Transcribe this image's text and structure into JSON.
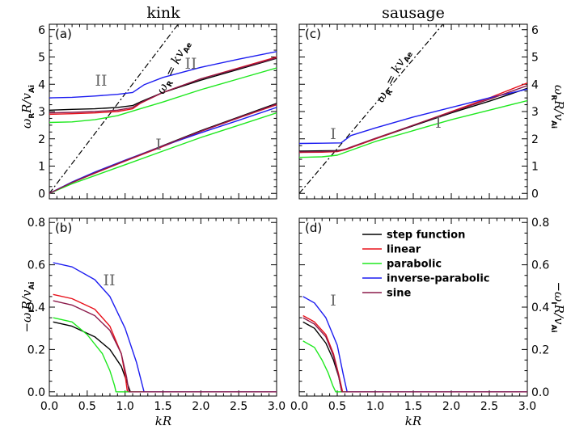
{
  "titles": {
    "left": "kink",
    "right": "sausage"
  },
  "xlabel": "kR",
  "ylabel_top": {
    "pre": "ω",
    "sub": "R",
    "post": "R/v",
    "sub2": "Ai"
  },
  "ylabel_bottom": {
    "pre": "−ω",
    "sub": "I",
    "post": "R/v",
    "sub2": "Ai"
  },
  "diag_label": {
    "pre": "ω",
    "sub": "R",
    "post": " = kv",
    "sub2": "Ae"
  },
  "x_ticks": [
    "0.0",
    "0.5",
    "1.0",
    "1.5",
    "2.0",
    "2.5",
    "3.0"
  ],
  "top_y_ticks": [
    "0",
    "1",
    "2",
    "3",
    "4",
    "5",
    "6"
  ],
  "bottom_y_ticks": [
    "0.0",
    "0.2",
    "0.4",
    "0.6",
    "0.8"
  ],
  "panel_labels": [
    "(a)",
    "(b)",
    "(c)",
    "(d)"
  ],
  "mode_labels": {
    "a_II": "II",
    "a_I": "I",
    "b_II": "II",
    "c_I": "I",
    "c_I2": "I",
    "d_I": "I"
  },
  "legend": [
    {
      "name": "step function",
      "color": "#000000"
    },
    {
      "name": "linear",
      "color": "#e8101a"
    },
    {
      "name": "parabolic",
      "color": "#1ee81e"
    },
    {
      "name": "inverse-parabolic",
      "color": "#1c1cf0"
    },
    {
      "name": "sine",
      "color": "#8b1a4a"
    }
  ],
  "chart_data": [
    {
      "panel": "(a)",
      "type": "line",
      "title": "kink",
      "xlabel": "kR",
      "ylabel": "ωR R/vAi",
      "xlim": [
        0,
        3
      ],
      "ylim": [
        -0.2,
        6.2
      ],
      "reference_line": {
        "label": "ωR = kvAe",
        "x": [
          0,
          1.7
        ],
        "y": [
          0,
          6.2
        ]
      },
      "series": [
        {
          "name": "step function",
          "color": "#000000",
          "x": [
            0,
            0.3,
            0.6,
            0.9,
            1.1,
            1.2,
            1.5,
            2.0,
            2.5,
            3.0
          ],
          "y": [
            3.05,
            3.08,
            3.1,
            3.15,
            3.22,
            3.35,
            3.7,
            4.15,
            4.55,
            4.95
          ]
        },
        {
          "name": "linear",
          "color": "#e8101a",
          "x": [
            0,
            0.3,
            0.6,
            0.9,
            1.1,
            1.2,
            1.5,
            2.0,
            2.5,
            3.0
          ],
          "y": [
            2.9,
            2.92,
            2.95,
            3.0,
            3.1,
            3.3,
            3.7,
            4.2,
            4.6,
            5.0
          ]
        },
        {
          "name": "parabolic",
          "color": "#1ee81e",
          "x": [
            0,
            0.3,
            0.6,
            0.9,
            1.2,
            1.5,
            2.0,
            2.5,
            3.0
          ],
          "y": [
            2.6,
            2.62,
            2.7,
            2.85,
            3.1,
            3.35,
            3.8,
            4.2,
            4.6
          ]
        },
        {
          "name": "inverse-parabolic",
          "color": "#1c1cf0",
          "x": [
            0,
            0.3,
            0.6,
            0.9,
            1.1,
            1.25,
            1.5,
            2.0,
            2.5,
            3.0
          ],
          "y": [
            3.5,
            3.52,
            3.57,
            3.63,
            3.7,
            3.98,
            4.25,
            4.62,
            4.92,
            5.2
          ]
        },
        {
          "name": "sine",
          "color": "#8b1a4a",
          "x": [
            0,
            0.3,
            0.6,
            0.9,
            1.1,
            1.2,
            1.5,
            2.0,
            2.5,
            3.0
          ],
          "y": [
            2.95,
            2.97,
            3.0,
            3.05,
            3.15,
            3.32,
            3.7,
            4.2,
            4.58,
            4.97
          ]
        },
        {
          "name": "step function",
          "color": "#000000",
          "x": [
            0,
            0.3,
            0.6,
            1.0,
            1.5,
            2.0,
            2.5,
            3.0
          ],
          "y": [
            0.0,
            0.4,
            0.75,
            1.2,
            1.75,
            2.3,
            2.8,
            3.3
          ]
        },
        {
          "name": "linear",
          "color": "#e8101a",
          "x": [
            0,
            0.3,
            0.6,
            1.0,
            1.5,
            2.0,
            2.5,
            3.0
          ],
          "y": [
            0.0,
            0.4,
            0.74,
            1.18,
            1.72,
            2.27,
            2.77,
            3.25
          ]
        },
        {
          "name": "parabolic",
          "color": "#1ee81e",
          "x": [
            0,
            0.3,
            0.6,
            1.0,
            1.5,
            2.0,
            2.5,
            3.0
          ],
          "y": [
            0.0,
            0.35,
            0.65,
            1.05,
            1.55,
            2.05,
            2.5,
            2.95
          ]
        },
        {
          "name": "inverse-parabolic",
          "color": "#1c1cf0",
          "x": [
            0,
            0.3,
            0.6,
            1.0,
            1.5,
            2.0,
            2.5,
            3.0
          ],
          "y": [
            0.0,
            0.42,
            0.78,
            1.22,
            1.74,
            2.22,
            2.68,
            3.15
          ]
        },
        {
          "name": "sine",
          "color": "#8b1a4a",
          "x": [
            0,
            0.3,
            0.6,
            1.0,
            1.5,
            2.0,
            2.5,
            3.0
          ],
          "y": [
            0.0,
            0.4,
            0.75,
            1.2,
            1.74,
            2.28,
            2.78,
            3.27
          ]
        }
      ]
    },
    {
      "panel": "(b)",
      "type": "line",
      "xlabel": "kR",
      "ylabel": "−ωI R/vAi",
      "xlim": [
        0,
        3
      ],
      "ylim": [
        -0.02,
        0.82
      ],
      "series": [
        {
          "name": "step function",
          "color": "#000000",
          "x": [
            0.05,
            0.3,
            0.6,
            0.8,
            0.95,
            1.02,
            1.07,
            3.0
          ],
          "y": [
            0.33,
            0.31,
            0.26,
            0.2,
            0.12,
            0.05,
            0.0,
            0.0
          ]
        },
        {
          "name": "linear",
          "color": "#e8101a",
          "x": [
            0.05,
            0.3,
            0.6,
            0.8,
            0.95,
            1.0,
            1.03,
            3.0
          ],
          "y": [
            0.46,
            0.44,
            0.39,
            0.31,
            0.18,
            0.08,
            0.0,
            0.0
          ]
        },
        {
          "name": "parabolic",
          "color": "#1ee81e",
          "x": [
            0.05,
            0.3,
            0.5,
            0.7,
            0.8,
            0.86,
            0.88,
            3.0
          ],
          "y": [
            0.35,
            0.33,
            0.27,
            0.18,
            0.1,
            0.03,
            0.0,
            0.0
          ]
        },
        {
          "name": "inverse-parabolic",
          "color": "#1c1cf0",
          "x": [
            0.05,
            0.3,
            0.6,
            0.8,
            1.0,
            1.15,
            1.25,
            3.0
          ],
          "y": [
            0.61,
            0.59,
            0.53,
            0.45,
            0.3,
            0.14,
            0.0,
            0.0
          ]
        },
        {
          "name": "sine",
          "color": "#8b1a4a",
          "x": [
            0.05,
            0.3,
            0.6,
            0.8,
            0.95,
            1.02,
            1.05,
            3.0
          ],
          "y": [
            0.43,
            0.41,
            0.36,
            0.29,
            0.18,
            0.07,
            0.0,
            0.0
          ]
        }
      ]
    },
    {
      "panel": "(c)",
      "type": "line",
      "title": "sausage",
      "xlabel": "kR",
      "ylabel": "ωR R/vAi",
      "xlim": [
        0,
        3
      ],
      "ylim": [
        -0.2,
        6.2
      ],
      "reference_line": {
        "label": "ωR = kvAe",
        "x": [
          0,
          1.89
        ],
        "y": [
          0,
          6.2
        ]
      },
      "series": [
        {
          "name": "step function",
          "color": "#000000",
          "x": [
            0,
            0.3,
            0.5,
            0.62,
            1.0,
            1.5,
            2.0,
            2.5,
            3.0
          ],
          "y": [
            1.55,
            1.56,
            1.57,
            1.62,
            2.0,
            2.48,
            2.95,
            3.38,
            3.85
          ]
        },
        {
          "name": "linear",
          "color": "#e8101a",
          "x": [
            0,
            0.3,
            0.5,
            0.6,
            1.0,
            1.5,
            2.0,
            2.5,
            3.0
          ],
          "y": [
            1.5,
            1.51,
            1.53,
            1.6,
            2.0,
            2.5,
            3.0,
            3.5,
            4.05
          ]
        },
        {
          "name": "parabolic",
          "color": "#1ee81e",
          "x": [
            0,
            0.3,
            0.5,
            0.6,
            1.0,
            1.5,
            2.0,
            2.5,
            3.0
          ],
          "y": [
            1.32,
            1.34,
            1.4,
            1.5,
            1.9,
            2.3,
            2.7,
            3.05,
            3.4
          ]
        },
        {
          "name": "inverse-parabolic",
          "color": "#1c1cf0",
          "x": [
            0,
            0.3,
            0.55,
            0.68,
            1.0,
            1.5,
            2.0,
            2.5,
            3.0
          ],
          "y": [
            1.83,
            1.84,
            1.85,
            2.12,
            2.4,
            2.8,
            3.15,
            3.5,
            3.82
          ]
        },
        {
          "name": "sine",
          "color": "#8b1a4a",
          "x": [
            0,
            0.3,
            0.5,
            0.6,
            1.0,
            1.5,
            2.0,
            2.5,
            3.0
          ],
          "y": [
            1.52,
            1.53,
            1.55,
            1.62,
            2.02,
            2.5,
            2.98,
            3.45,
            3.95
          ]
        }
      ]
    },
    {
      "panel": "(d)",
      "type": "line",
      "xlabel": "kR",
      "ylabel": "−ωI R/vAi",
      "xlim": [
        0,
        3
      ],
      "ylim": [
        -0.02,
        0.82
      ],
      "series": [
        {
          "name": "step function",
          "color": "#000000",
          "x": [
            0.05,
            0.2,
            0.35,
            0.45,
            0.52,
            0.56,
            3.0
          ],
          "y": [
            0.33,
            0.3,
            0.23,
            0.15,
            0.07,
            0.0,
            0.0
          ]
        },
        {
          "name": "linear",
          "color": "#e8101a",
          "x": [
            0.05,
            0.2,
            0.35,
            0.45,
            0.52,
            0.57,
            3.0
          ],
          "y": [
            0.36,
            0.33,
            0.27,
            0.18,
            0.08,
            0.0,
            0.0
          ]
        },
        {
          "name": "parabolic",
          "color": "#1ee81e",
          "x": [
            0.05,
            0.2,
            0.3,
            0.38,
            0.44,
            0.48,
            3.0
          ],
          "y": [
            0.24,
            0.21,
            0.15,
            0.09,
            0.03,
            0.0,
            0.0
          ]
        },
        {
          "name": "inverse-parabolic",
          "color": "#1c1cf0",
          "x": [
            0.05,
            0.2,
            0.35,
            0.5,
            0.58,
            0.63,
            3.0
          ],
          "y": [
            0.45,
            0.42,
            0.35,
            0.22,
            0.08,
            0.0,
            0.0
          ]
        },
        {
          "name": "sine",
          "color": "#8b1a4a",
          "x": [
            0.05,
            0.2,
            0.35,
            0.45,
            0.52,
            0.56,
            3.0
          ],
          "y": [
            0.35,
            0.32,
            0.26,
            0.17,
            0.07,
            0.0,
            0.0
          ]
        }
      ]
    }
  ]
}
